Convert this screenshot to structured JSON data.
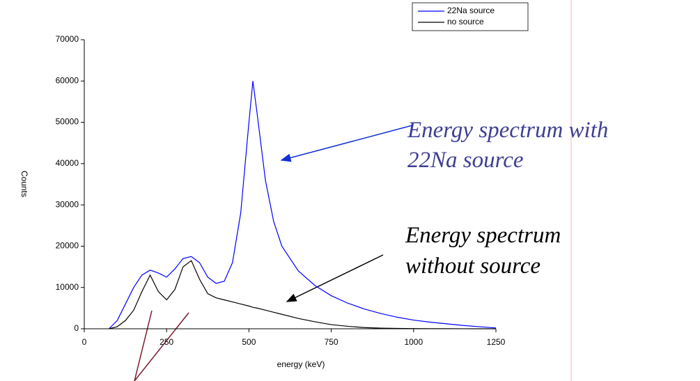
{
  "chart_data": {
    "type": "line",
    "x_label": "energy (keV)",
    "y_label": "Counts",
    "x": [
      75,
      100,
      125,
      150,
      175,
      200,
      225,
      250,
      275,
      300,
      325,
      350,
      375,
      400,
      425,
      450,
      475,
      500,
      512,
      525,
      550,
      575,
      600,
      650,
      700,
      750,
      800,
      850,
      900,
      950,
      1000,
      1050,
      1100,
      1150,
      1200,
      1250
    ],
    "series": [
      {
        "name": "22Na source",
        "color": "#0000ff",
        "values": [
          0,
          2000,
          6000,
          10000,
          13000,
          14200,
          13500,
          12500,
          14500,
          17000,
          17500,
          16000,
          12500,
          11000,
          11500,
          16000,
          28000,
          50000,
          60000,
          52000,
          36000,
          26000,
          20000,
          14000,
          10500,
          8000,
          6200,
          4800,
          3700,
          2800,
          2100,
          1600,
          1200,
          800,
          500,
          200
        ]
      },
      {
        "name": "no source",
        "color": "#000000",
        "values": [
          0,
          500,
          2000,
          4500,
          9000,
          13000,
          9000,
          7000,
          9500,
          15000,
          16500,
          12000,
          8500,
          7500,
          7000,
          6500,
          6000,
          5500,
          5200,
          5000,
          4500,
          4000,
          3500,
          2500,
          1700,
          1000,
          600,
          300,
          150,
          80,
          50,
          30,
          20,
          10,
          5,
          0
        ]
      }
    ],
    "xlim": [
      0,
      1250
    ],
    "xticks": [
      0,
      250,
      500,
      750,
      1000,
      1250
    ],
    "ylim": [
      0,
      70000
    ],
    "yticks": [
      0,
      10000,
      20000,
      30000,
      40000,
      50000,
      60000,
      70000
    ],
    "legend": "upper-right",
    "annotations": [
      [
        "Energy spectrum with",
        "22Na source"
      ],
      [
        "Energy spectrum",
        "without source"
      ]
    ]
  }
}
